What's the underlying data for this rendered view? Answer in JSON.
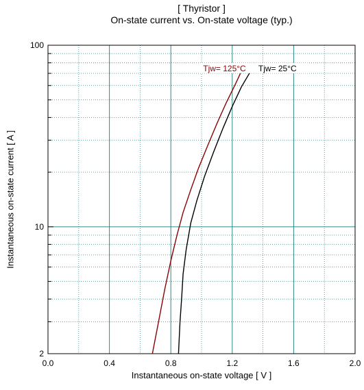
{
  "chart_data": {
    "type": "line",
    "title": "[ Thyristor ]",
    "subtitle": "On-state current  vs.  On-state voltage  (typ.)",
    "xlabel": "Instantaneous on-state voltage   [ V ]",
    "ylabel": "Instantaneous on-state current   [ A ]",
    "xlim": [
      0.0,
      2.0
    ],
    "ylim": [
      2,
      100
    ],
    "yscale": "log",
    "x_ticks": [
      "0.0",
      "0.4",
      "0.8",
      "1.2",
      "1.6",
      "2.0"
    ],
    "y_ticks": [
      "2",
      "10",
      "100"
    ],
    "grid": true,
    "series": [
      {
        "name": "Tjw= 125°C",
        "color": "#8b0000",
        "x": [
          0.68,
          0.72,
          0.76,
          0.8,
          0.84,
          0.88,
          0.93,
          0.98,
          1.04,
          1.1,
          1.16,
          1.22,
          1.26
        ],
        "y": [
          2,
          3,
          4.5,
          6.5,
          9,
          12,
          16,
          21,
          28,
          37,
          48,
          61,
          72
        ]
      },
      {
        "name": "Tjw= 25°C",
        "color": "#000000",
        "x": [
          0.85,
          0.86,
          0.87,
          0.88,
          0.9,
          0.93,
          0.97,
          1.02,
          1.08,
          1.14,
          1.2,
          1.26,
          1.32
        ],
        "y": [
          2,
          3,
          4,
          5.5,
          7.5,
          10.5,
          14,
          19,
          26,
          35,
          46,
          59,
          72
        ]
      }
    ]
  }
}
